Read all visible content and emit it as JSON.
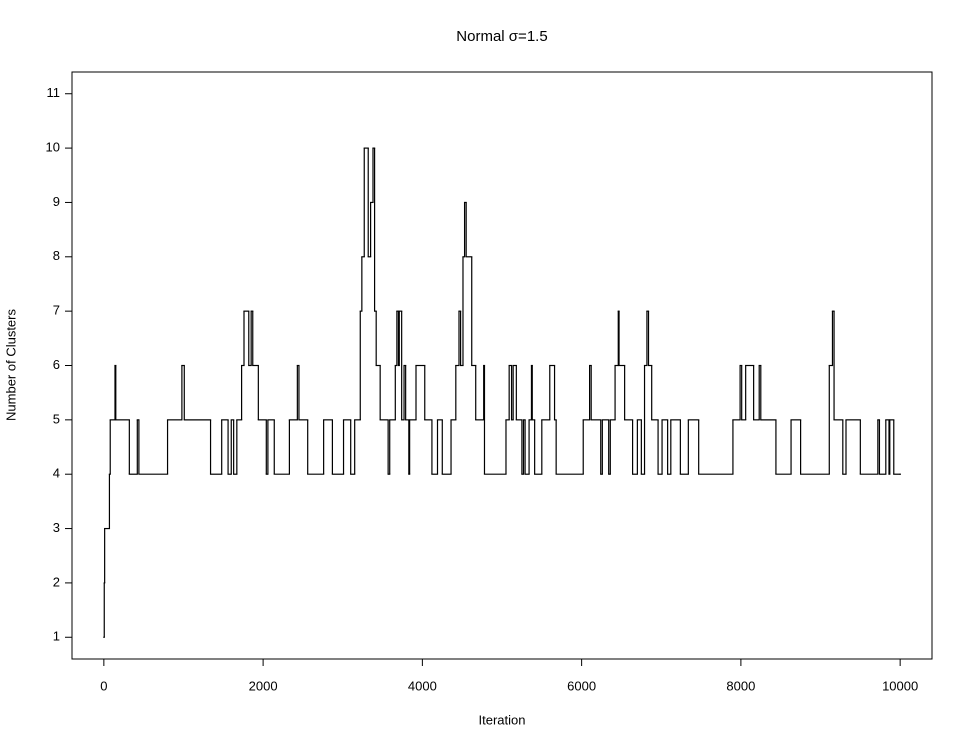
{
  "chart_data": {
    "type": "step",
    "title": "Normal σ=1.5",
    "xlabel": "Iteration",
    "ylabel": "Number of Clusters",
    "x": [
      0,
      5,
      10,
      70,
      80,
      140,
      150,
      320,
      420,
      440,
      800,
      980,
      1010,
      1340,
      1480,
      1560,
      1600,
      1630,
      1670,
      1730,
      1760,
      1820,
      1850,
      1870,
      1940,
      2040,
      2060,
      2140,
      2330,
      2430,
      2450,
      2560,
      2760,
      2870,
      3010,
      3100,
      3150,
      3220,
      3240,
      3270,
      3320,
      3350,
      3380,
      3400,
      3420,
      3470,
      3570,
      3590,
      3660,
      3680,
      3700,
      3710,
      3740,
      3770,
      3790,
      3830,
      3840,
      3920,
      4030,
      4120,
      4190,
      4250,
      4360,
      4420,
      4460,
      4480,
      4510,
      4530,
      4550,
      4620,
      4670,
      4770,
      4780,
      5050,
      5090,
      5120,
      5140,
      5180,
      5250,
      5270,
      5290,
      5340,
      5370,
      5380,
      5410,
      5500,
      5600,
      5660,
      5680,
      6020,
      6100,
      6120,
      6240,
      6260,
      6340,
      6360,
      6420,
      6460,
      6470,
      6540,
      6640,
      6700,
      6750,
      6790,
      6820,
      6840,
      6880,
      6960,
      7010,
      7080,
      7120,
      7240,
      7340,
      7470,
      7900,
      7990,
      8010,
      8060,
      8160,
      8230,
      8250,
      8440,
      8630,
      8750,
      9110,
      9150,
      9170,
      9280,
      9320,
      9500,
      9720,
      9740,
      9820,
      9860,
      9870,
      9920,
      10000
    ],
    "values": [
      1,
      2,
      3,
      4,
      5,
      6,
      5,
      4,
      5,
      4,
      5,
      6,
      5,
      4,
      5,
      4,
      5,
      4,
      5,
      6,
      7,
      6,
      7,
      6,
      5,
      4,
      5,
      4,
      5,
      6,
      5,
      4,
      5,
      4,
      5,
      4,
      5,
      7,
      8,
      10,
      8,
      9,
      10,
      7,
      6,
      5,
      4,
      5,
      6,
      7,
      6,
      7,
      5,
      6,
      5,
      4,
      5,
      6,
      5,
      4,
      5,
      4,
      5,
      6,
      7,
      6,
      8,
      9,
      8,
      6,
      5,
      6,
      4,
      5,
      6,
      5,
      6,
      5,
      4,
      5,
      4,
      5,
      6,
      5,
      4,
      5,
      6,
      5,
      4,
      5,
      6,
      5,
      4,
      5,
      4,
      5,
      6,
      7,
      6,
      5,
      4,
      5,
      4,
      6,
      7,
      6,
      5,
      4,
      5,
      4,
      5,
      4,
      5,
      4,
      5,
      6,
      5,
      6,
      5,
      6,
      5,
      4,
      5,
      4,
      6,
      7,
      5,
      4,
      5,
      4,
      5,
      4,
      5,
      4,
      5,
      4,
      4
    ],
    "color": "#000000",
    "xlim": [
      -400,
      10400
    ],
    "xticks": [
      0,
      2000,
      4000,
      6000,
      8000,
      10000
    ],
    "ylim": [
      0.6,
      11.4
    ],
    "yticks": [
      1,
      2,
      3,
      4,
      5,
      6,
      7,
      8,
      9,
      10,
      11
    ]
  }
}
